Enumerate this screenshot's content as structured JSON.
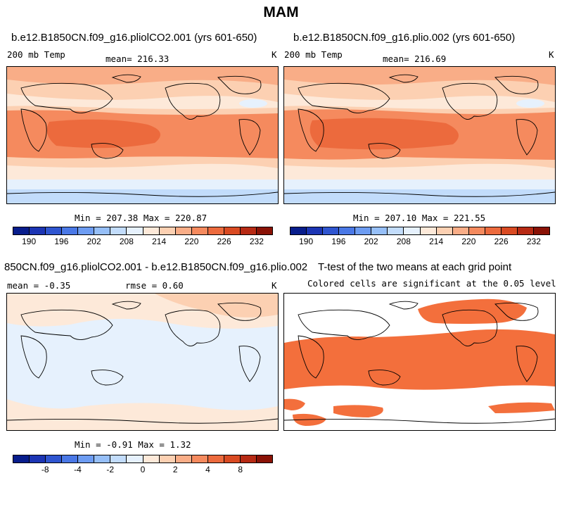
{
  "figure": {
    "title": "MAM"
  },
  "panels": {
    "top_left": {
      "title": "b.e12.B1850CN.f09_g16.pliolCO2.001 (yrs 601-650)",
      "variable": "200 mb Temp",
      "mean": "mean= 216.33",
      "units": "K",
      "minmax": "Min = 207.38 Max = 220.87"
    },
    "top_right": {
      "title": "b.e12.B1850CN.f09_g16.plio.002 (yrs 601-650)",
      "variable": "200 mb Temp",
      "mean": "mean= 216.69",
      "units": "K",
      "minmax": "Min = 207.10 Max = 221.55"
    },
    "bottom_left": {
      "title": "850CN.f09_g16.pliolCO2.001 - b.e12.B1850CN.f09_g16.plio.002",
      "mean": "mean =  -0.35",
      "rmse": "rmse =   0.60",
      "units": "K",
      "minmax": "Min =  -0.91 Max =   1.32"
    },
    "bottom_right": {
      "title": "T-test of the two means at each grid point",
      "subtitle": "Colored cells are significant at the 0.05 level"
    }
  },
  "colorbars": {
    "temp": {
      "colors": [
        "#081d8c",
        "#1c35b4",
        "#2f55d0",
        "#4a78e6",
        "#6d9cf2",
        "#96bff8",
        "#c2dcfb",
        "#e6f1fd",
        "#fde9d9",
        "#fcd0b2",
        "#f9ad87",
        "#f58a5e",
        "#ec6a3d",
        "#d94a22",
        "#b72a14",
        "#8a1206"
      ],
      "ticks": [
        "190",
        "196",
        "202",
        "208",
        "214",
        "220",
        "226",
        "232"
      ]
    },
    "diff": {
      "colors": [
        "#081d8c",
        "#1c35b4",
        "#2f55d0",
        "#4a78e6",
        "#6d9cf2",
        "#96bff8",
        "#c2dcfb",
        "#e6f1fd",
        "#fde9d9",
        "#fcd0b2",
        "#f9ad87",
        "#f58a5e",
        "#ec6a3d",
        "#d94a22",
        "#b72a14",
        "#8a1206"
      ],
      "ticks": [
        "-8",
        "-4",
        "-2",
        "0",
        "2",
        "4",
        "8"
      ]
    }
  }
}
